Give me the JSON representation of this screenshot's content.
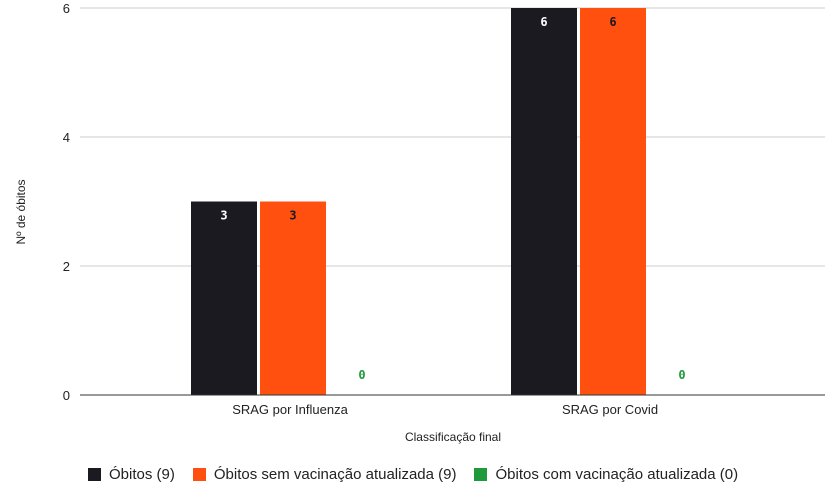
{
  "chart_data": {
    "type": "bar",
    "title": "",
    "xlabel": "Classificação final",
    "ylabel": "Nº de óbitos",
    "categories": [
      "SRAG por Influenza",
      "SRAG por Covid"
    ],
    "series": [
      {
        "name": "Óbitos (9)",
        "values": [
          3,
          6
        ],
        "color": "#1b1a20"
      },
      {
        "name": "Óbitos sem vacinação atualizada (9)",
        "values": [
          3,
          6
        ],
        "color": "#ff5010"
      },
      {
        "name": "Óbitos com vacinação atualizada (0)",
        "values": [
          0,
          0
        ],
        "color": "#1e9a3c"
      }
    ],
    "ylim": [
      0,
      6
    ],
    "yticks": [
      0,
      2,
      4,
      6
    ],
    "grid": true,
    "legend_position": "bottom",
    "data_labels": true
  }
}
